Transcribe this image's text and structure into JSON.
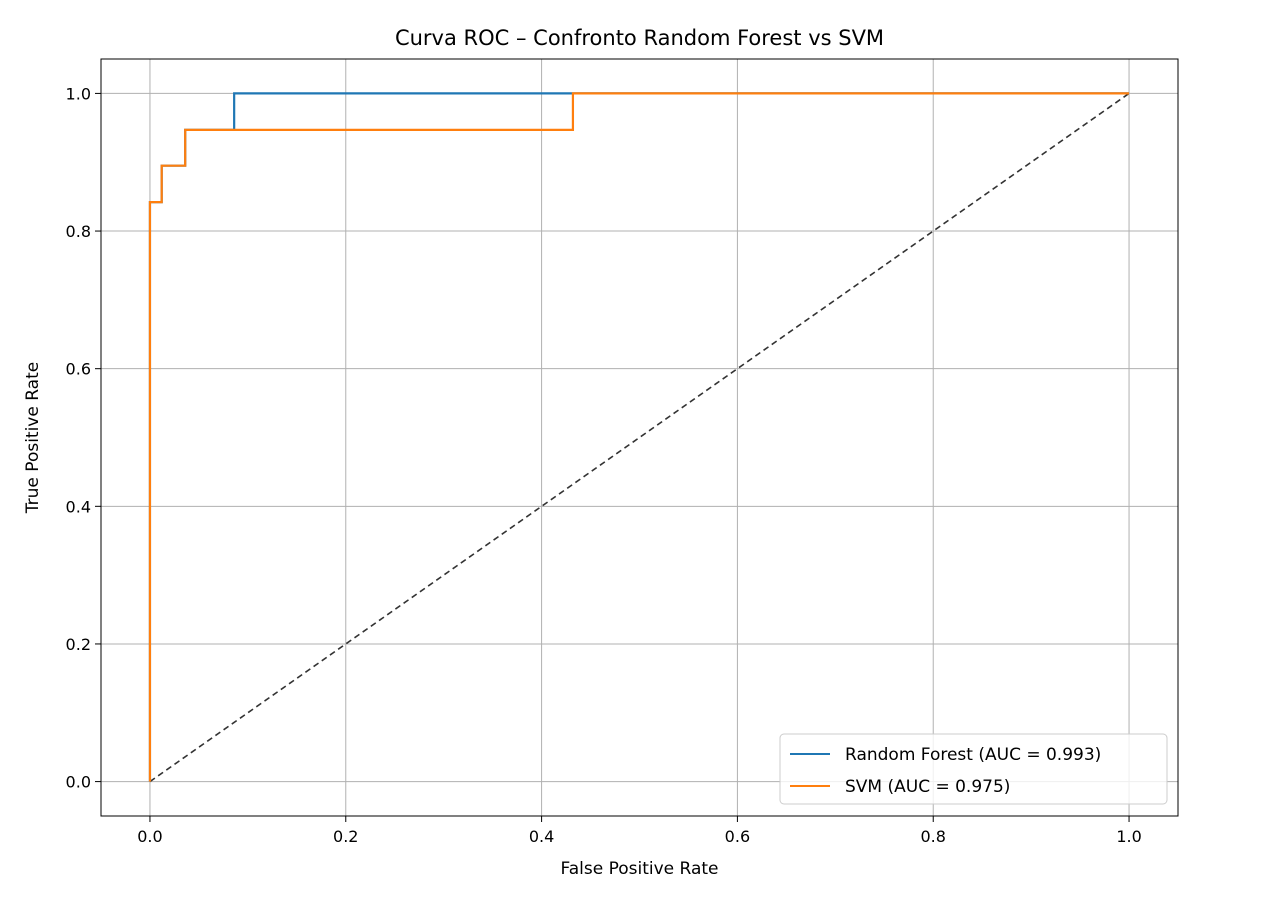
{
  "chart_data": {
    "type": "line",
    "title": "Curva ROC – Confronto Random Forest vs SVM",
    "xlabel": "False Positive Rate",
    "ylabel": "True Positive Rate",
    "xlim": [
      -0.05,
      1.05
    ],
    "ylim": [
      -0.05,
      1.05
    ],
    "xticks": [
      0.0,
      0.2,
      0.4,
      0.6,
      0.8,
      1.0
    ],
    "yticks": [
      0.0,
      0.2,
      0.4,
      0.6,
      0.8,
      1.0
    ],
    "xtick_labels": [
      "0.0",
      "0.2",
      "0.4",
      "0.6",
      "0.8",
      "1.0"
    ],
    "ytick_labels": [
      "0.0",
      "0.2",
      "0.4",
      "0.6",
      "0.8",
      "1.0"
    ],
    "grid": true,
    "legend_position": "lower right",
    "series": [
      {
        "name": "Random Forest (AUC = 0.993)",
        "color": "#1f77b4",
        "x": [
          0.0,
          0.0,
          0.012,
          0.012,
          0.036,
          0.036,
          0.086,
          0.086,
          1.0
        ],
        "y": [
          0.0,
          0.842,
          0.842,
          0.895,
          0.895,
          0.947,
          0.947,
          1.0,
          1.0
        ]
      },
      {
        "name": "SVM (AUC = 0.975)",
        "color": "#ff7f0e",
        "x": [
          0.0,
          0.0,
          0.012,
          0.012,
          0.036,
          0.036,
          0.432,
          0.432,
          1.0
        ],
        "y": [
          0.0,
          0.842,
          0.842,
          0.895,
          0.895,
          0.947,
          0.947,
          1.0,
          1.0
        ]
      }
    ],
    "reference_line": {
      "style": "dashed",
      "color": "#333333",
      "x": [
        0.0,
        1.0
      ],
      "y": [
        0.0,
        1.0
      ]
    }
  }
}
